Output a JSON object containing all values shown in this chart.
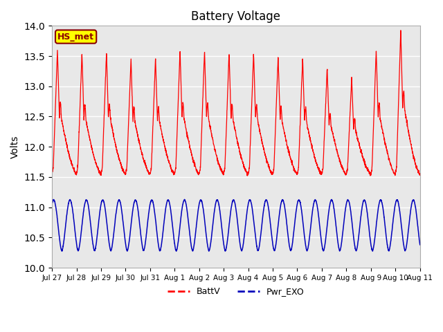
{
  "title": "Battery Voltage",
  "ylabel": "Volts",
  "ylim": [
    10.0,
    14.0
  ],
  "yticks": [
    10.0,
    10.5,
    11.0,
    11.5,
    12.0,
    12.5,
    13.0,
    13.5,
    14.0
  ],
  "xtick_labels": [
    "Jul 27",
    "Jul 28",
    "Jul 29",
    "Jul 30",
    "Jul 31",
    "Aug 1",
    "Aug 2",
    "Aug 3",
    "Aug 4",
    "Aug 5",
    "Aug 6",
    "Aug 7",
    "Aug 8",
    "Aug 9",
    "Aug 10",
    "Aug 11"
  ],
  "legend_entries": [
    "BattV",
    "Pwr_EXO"
  ],
  "line_colors": [
    "#ff0000",
    "#0000bb"
  ],
  "annotation_text": "HS_met",
  "annotation_bg": "#ffff00",
  "annotation_border": "#8b0000",
  "plot_bg": "#e8e8e8",
  "batt_min": 11.55,
  "day_peaks": [
    13.62,
    13.55,
    13.57,
    13.47,
    13.47,
    13.6,
    13.6,
    13.55,
    13.55,
    13.5,
    13.47,
    13.3,
    13.15,
    13.6,
    13.95,
    13.52
  ],
  "pwr_min": 10.28,
  "pwr_max": 11.12,
  "n_days": 16,
  "samples_per_day": 200,
  "pwr_cycles_per_day": 1.5
}
